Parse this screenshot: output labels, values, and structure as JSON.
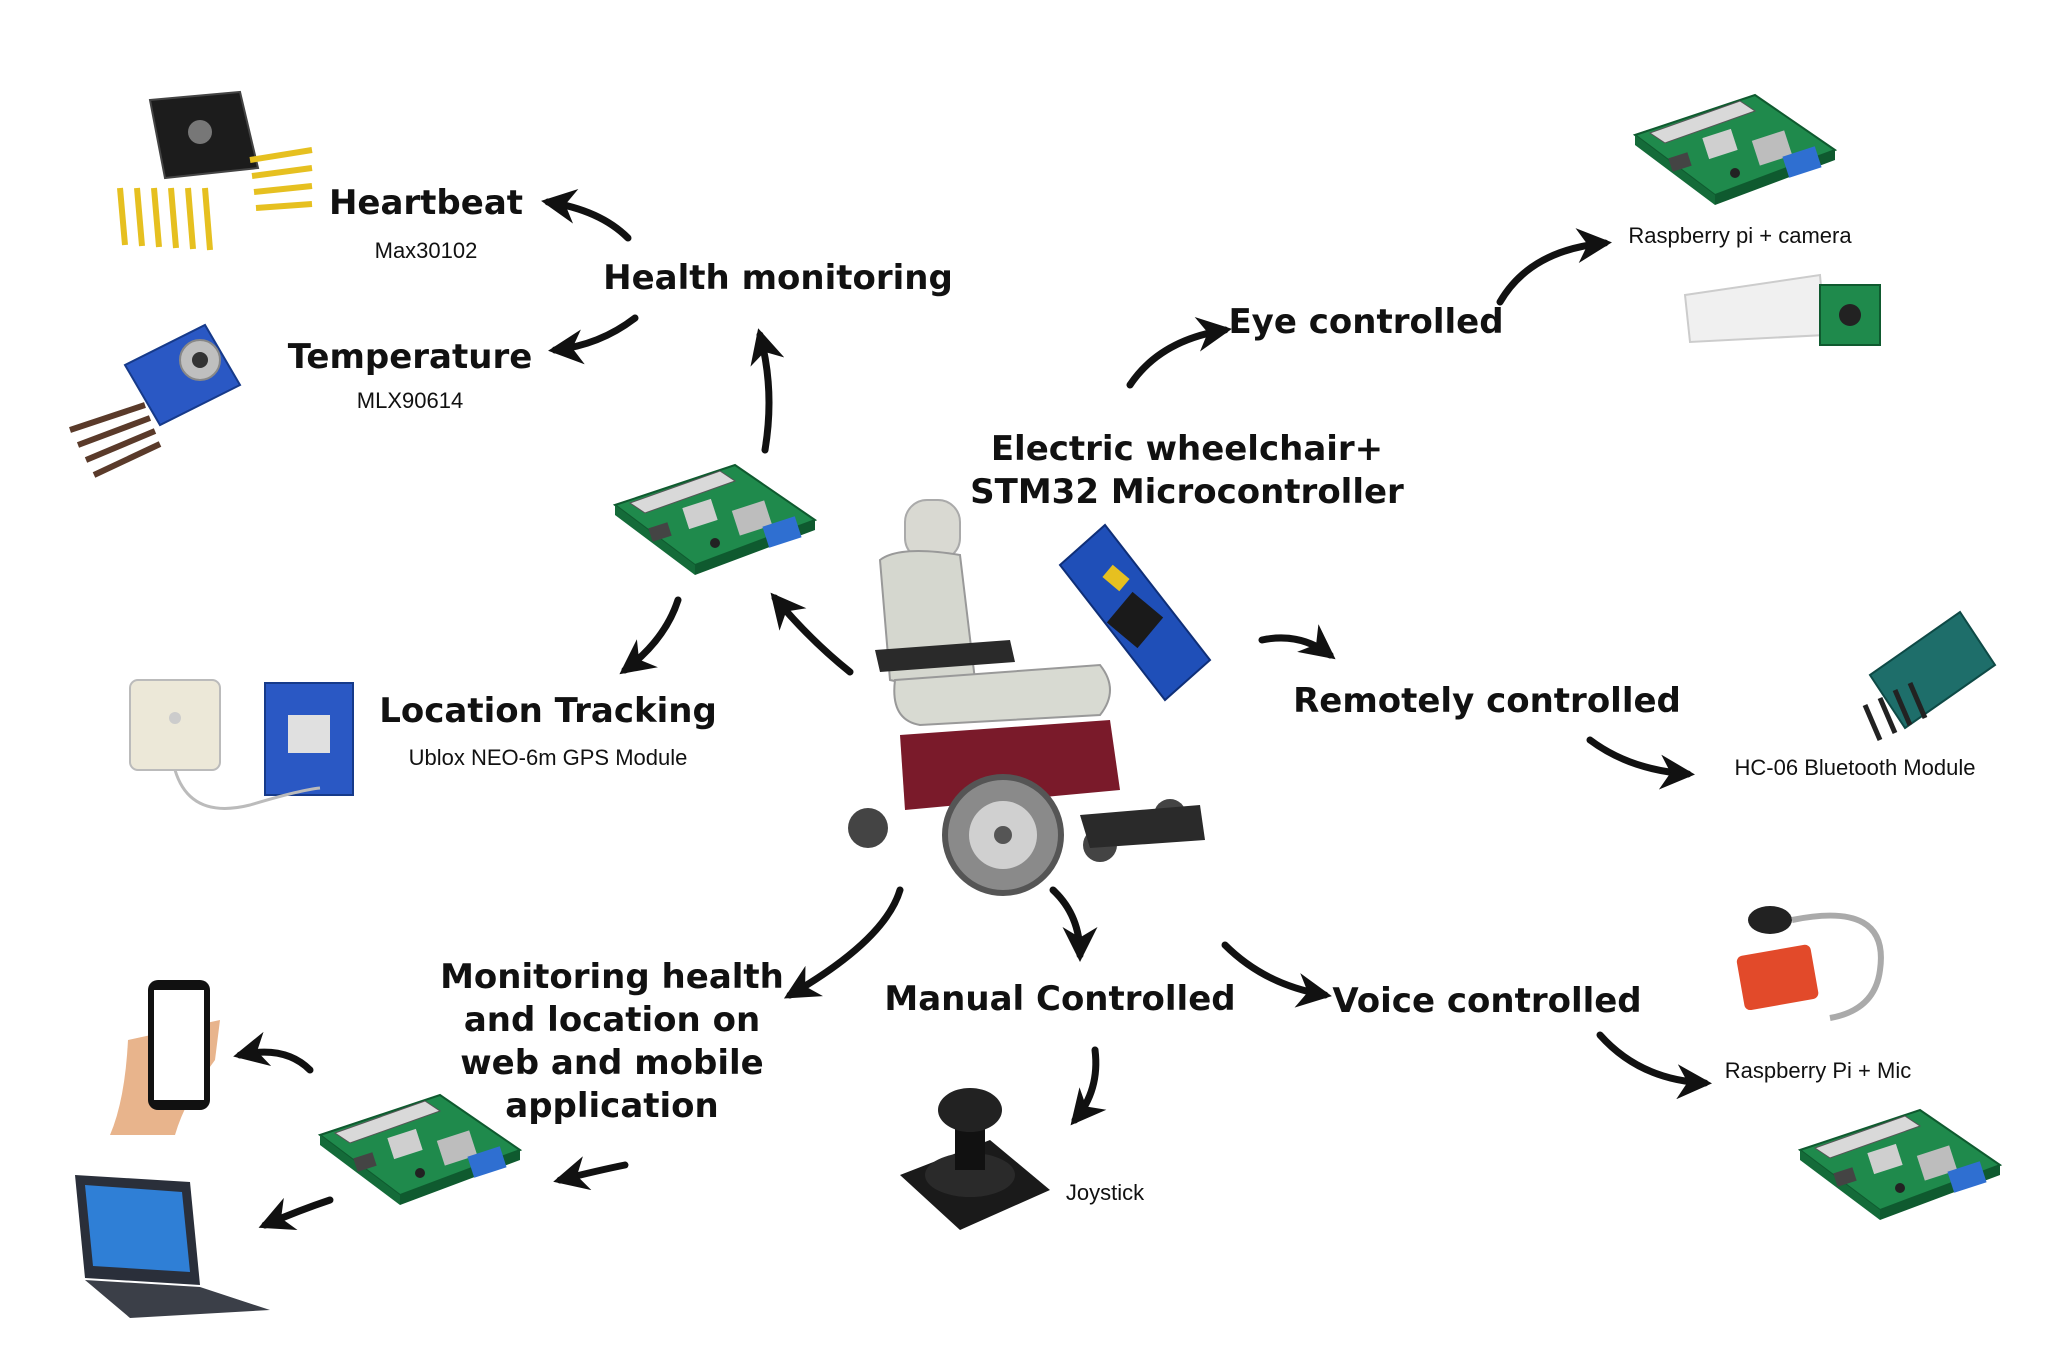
{
  "center": {
    "title_line1": "Electric wheelchair+",
    "title_line2": "STM32 Microcontroller",
    "image_wheelchair": "wheelchair",
    "image_board": "stm32-board"
  },
  "health": {
    "label": "Health monitoring",
    "heartbeat": {
      "label": "Heartbeat",
      "sub": "Max30102",
      "image": "max30102-sensor"
    },
    "temperature": {
      "label": "Temperature",
      "sub": "MLX90614",
      "image": "mlx90614-sensor"
    },
    "image": "raspberry-pi"
  },
  "location": {
    "label": "Location Tracking",
    "sub": "Ublox NEO-6m GPS Module",
    "image": "gps-module"
  },
  "monitoring": {
    "line1": "Monitoring health",
    "line2": "and location on",
    "line3": "web and mobile",
    "line4": "application",
    "images": [
      "phone-in-hand",
      "raspberry-pi",
      "laptop"
    ]
  },
  "eye": {
    "label": "Eye controlled",
    "sub": "Raspberry pi + camera",
    "images": [
      "raspberry-pi",
      "camera-module"
    ]
  },
  "remote": {
    "label": "Remotely controlled",
    "sub": "HC-06 Bluetooth Module",
    "image": "hc06-module"
  },
  "manual": {
    "label": "Manual Controlled",
    "sub": "Joystick",
    "image": "joystick"
  },
  "voice": {
    "label": "Voice controlled",
    "sub": "Raspberry Pi + Mic",
    "images": [
      "microphone",
      "raspberry-pi"
    ]
  }
}
